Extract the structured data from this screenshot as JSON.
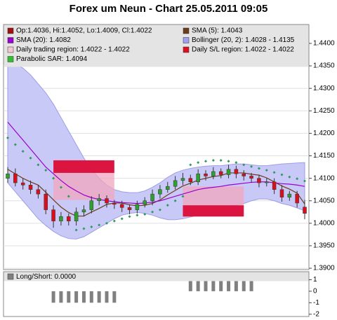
{
  "chart_data": {
    "type": "candlestick",
    "title": "Forex um Neun - Chart 25.05.2011 09:05",
    "ylim": [
      1.3897,
      1.4442
    ],
    "yticks": [
      {
        "value": 1.44,
        "label": "1.4400"
      },
      {
        "value": 1.435,
        "label": "1.4350"
      },
      {
        "value": 1.43,
        "label": "1.4300"
      },
      {
        "value": 1.425,
        "label": "1.4250"
      },
      {
        "value": 1.42,
        "label": "1.4200"
      },
      {
        "value": 1.415,
        "label": "1.4150"
      },
      {
        "value": 1.41,
        "label": "1.4100"
      },
      {
        "value": 1.405,
        "label": "1.4050"
      },
      {
        "value": 1.4,
        "label": "1.4000"
      },
      {
        "value": 1.395,
        "label": "1.3950"
      },
      {
        "value": 1.39,
        "label": "1.3900"
      }
    ],
    "grid": true,
    "up_color": "#2ea02e",
    "down_color": "#d8101c",
    "open": [
      1.41,
      1.411,
      1.409,
      1.4085,
      1.4075,
      1.4065,
      1.403,
      1.4005,
      1.4015,
      1.4005,
      1.4025,
      1.403,
      1.405,
      1.4055,
      1.4045,
      1.4042,
      1.4035,
      1.403,
      1.4042,
      1.405,
      1.4065,
      1.4075,
      1.4082,
      1.4095,
      1.41,
      1.4092,
      1.411,
      1.4105,
      1.4115,
      1.4108,
      1.412,
      1.411,
      1.4105,
      1.41,
      1.409,
      1.4092,
      1.4075,
      1.4058,
      1.4065,
      1.4036
    ],
    "high": [
      1.4125,
      1.4122,
      1.41,
      1.4095,
      1.4085,
      1.4075,
      1.404,
      1.4025,
      1.4022,
      1.4035,
      1.404,
      1.406,
      1.4065,
      1.4062,
      1.4052,
      1.405,
      1.4042,
      1.405,
      1.4058,
      1.4075,
      1.4085,
      1.4092,
      1.4105,
      1.4112,
      1.4108,
      1.412,
      1.4118,
      1.4125,
      1.4122,
      1.413,
      1.4128,
      1.4118,
      1.4112,
      1.4108,
      1.41,
      1.41,
      1.4085,
      1.4072,
      1.4072,
      1.4052
    ],
    "low": [
      1.409,
      1.4082,
      1.4075,
      1.4065,
      1.4055,
      1.402,
      1.399,
      1.3995,
      1.3995,
      1.3995,
      1.4015,
      1.4022,
      1.404,
      1.4035,
      1.4032,
      1.4025,
      1.402,
      1.4022,
      1.4035,
      1.404,
      1.4055,
      1.4068,
      1.4075,
      1.4085,
      1.4085,
      1.4085,
      1.4095,
      1.4098,
      1.41,
      1.41,
      1.41,
      1.4095,
      1.409,
      1.408,
      1.4082,
      1.4065,
      1.4048,
      1.405,
      1.4035,
      1.4009
    ],
    "close": [
      1.411,
      1.409,
      1.4085,
      1.4075,
      1.4065,
      1.403,
      1.4005,
      1.4015,
      1.4005,
      1.4025,
      1.403,
      1.405,
      1.4055,
      1.4045,
      1.4042,
      1.4035,
      1.403,
      1.4042,
      1.405,
      1.4065,
      1.4075,
      1.4082,
      1.4095,
      1.41,
      1.4092,
      1.411,
      1.4105,
      1.4115,
      1.4108,
      1.412,
      1.411,
      1.4105,
      1.41,
      1.409,
      1.4092,
      1.4075,
      1.4058,
      1.4065,
      1.4045,
      1.4022
    ],
    "band": {
      "color": "#c9c9f7",
      "edge": "#9d9de6",
      "upper": [
        1.436,
        1.4355,
        1.4345,
        1.433,
        1.431,
        1.429,
        1.4265,
        1.4235,
        1.4205,
        1.4175,
        1.4145,
        1.412,
        1.41,
        1.4085,
        1.4075,
        1.407,
        1.4068,
        1.4068,
        1.4072,
        1.408,
        1.409,
        1.4102,
        1.4112,
        1.4118,
        1.4122,
        1.4125,
        1.4127,
        1.4128,
        1.4128,
        1.413,
        1.4132,
        1.4132,
        1.413,
        1.4128,
        1.4128,
        1.413,
        1.4132,
        1.4133,
        1.4134,
        1.4135
      ],
      "lower": [
        1.409,
        1.407,
        1.405,
        1.403,
        1.401,
        1.3995,
        1.3982,
        1.3972,
        1.3966,
        1.3965,
        1.397,
        1.398,
        1.399,
        1.4,
        1.401,
        1.4018,
        1.4022,
        1.4024,
        1.4022,
        1.4018,
        1.4012,
        1.4008,
        1.4008,
        1.401,
        1.4014,
        1.4018,
        1.4022,
        1.4026,
        1.403,
        1.4032,
        1.404,
        1.4044,
        1.405,
        1.4054,
        1.4054,
        1.405,
        1.4044,
        1.404,
        1.4034,
        1.4028
      ]
    },
    "lines": [
      {
        "color": "#6b3d1a",
        "values": [
          1.412,
          1.411,
          1.41,
          1.4092,
          1.4085,
          1.4069,
          1.4052,
          1.4036,
          1.4024,
          1.4016,
          1.4016,
          1.4025,
          1.4033,
          1.4042,
          1.4045,
          1.4045,
          1.4041,
          1.4039,
          1.404,
          1.4044,
          1.4052,
          1.4063,
          1.4073,
          1.4083,
          1.4089,
          1.4096,
          1.41,
          1.4104,
          1.4106,
          1.4112,
          1.4112,
          1.4112,
          1.4109,
          1.4107,
          1.4101,
          1.4092,
          1.4083,
          1.4076,
          1.4067,
          1.4043
        ]
      },
      {
        "color": "#9a00d0",
        "values": [
          1.4225,
          1.4205,
          1.4185,
          1.4165,
          1.4145,
          1.4125,
          1.411,
          1.4095,
          1.4082,
          1.4072,
          1.4063,
          1.4057,
          1.4053,
          1.405,
          1.4048,
          1.4046,
          1.4045,
          1.4044,
          1.4045,
          1.4047,
          1.405,
          1.4055,
          1.406,
          1.4065,
          1.407,
          1.4075,
          1.4078,
          1.408,
          1.4082,
          1.4085,
          1.4087,
          1.4089,
          1.4091,
          1.4092,
          1.4092,
          1.409,
          1.4088,
          1.4087,
          1.4085,
          1.4082
        ]
      }
    ],
    "sar": {
      "color": "#2f9a5e",
      "values": [
        1.419,
        1.4175,
        1.416,
        1.4145,
        1.413,
        1.4118,
        1.41,
        1.408,
        1.406,
        1.3985,
        1.3988,
        1.3992,
        1.3996,
        1.4,
        1.4005,
        1.401,
        1.4015,
        1.4018,
        1.402,
        1.4025,
        1.403,
        1.404,
        1.405,
        1.406,
        1.413,
        1.4135,
        1.4138,
        1.414,
        1.414,
        1.4138,
        1.4135,
        1.413,
        1.4126,
        1.4122,
        1.4118,
        1.4113,
        1.4108,
        1.4103,
        1.4099,
        1.4094
      ]
    },
    "regions": [
      {
        "start": 6,
        "end": 14,
        "top": 1.414,
        "bottom": 1.4112,
        "shade_edge": 1.4052
      },
      {
        "start": 23,
        "end": 31,
        "top": 1.404,
        "bottom": 1.4015,
        "shade_edge": 1.4082
      }
    ],
    "region_color": "#dc1440",
    "shade_color": "#f2a6bf",
    "legend": [
      {
        "label": "Op:1.4036, Hi:1.4052, Lo:1.4009, Cl:1.4022",
        "color": "#a01010"
      },
      {
        "label": "SMA (5): 1.4043",
        "color": "#6b3d1a"
      },
      {
        "label": "SMA (20): 1.4082",
        "color": "#9a00d0"
      },
      {
        "label": "Bollinger (20, 2): 1.4028 - 1.4135",
        "color": "#a0a0f0"
      },
      {
        "label": "Daily trading region: 1.4022 - 1.4022",
        "color": "#f4c8d0"
      },
      {
        "label": "Daily S/L region: 1.4022 - 1.4022",
        "color": "#e01020"
      },
      {
        "label": "Parabolic SAR: 1.4094",
        "color": "#30c030"
      }
    ],
    "sub": {
      "label": "Long/Short: 0.0000",
      "color": "#808080",
      "ylim": [
        -2.2,
        1.7
      ],
      "yticks": [
        1,
        0,
        -1,
        -2
      ],
      "values": [
        0,
        0,
        0,
        0,
        0,
        0,
        -1,
        -1,
        -1,
        -1,
        -1,
        -1,
        -1,
        -1,
        -1,
        0,
        0,
        0,
        0,
        0,
        0,
        0,
        0,
        0,
        1,
        1,
        1,
        1,
        1,
        1,
        1,
        1,
        1,
        0,
        0,
        0,
        0,
        0,
        0,
        0
      ]
    }
  }
}
